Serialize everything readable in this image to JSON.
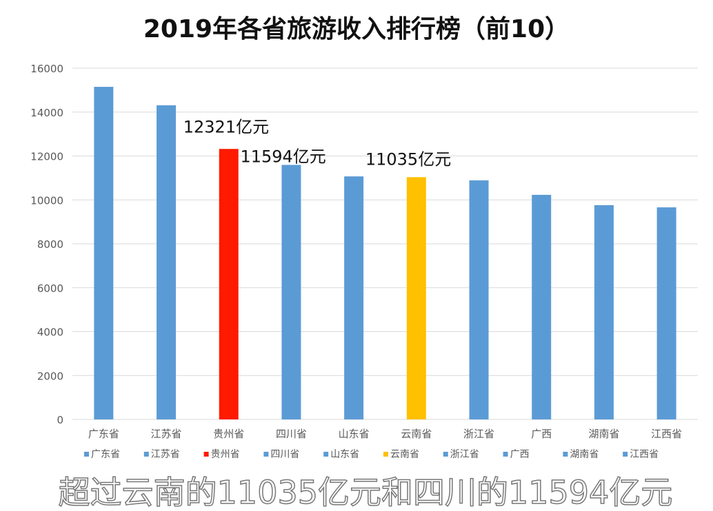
{
  "chart_data": {
    "type": "bar",
    "title": "2019年各省旅游收入排行榜（前10）",
    "categories": [
      "广东省",
      "江苏省",
      "贵州省",
      "四川省",
      "山东省",
      "云南省",
      "浙江省",
      "广西",
      "湖南省",
      "江西省"
    ],
    "values": [
      15150,
      14310,
      12321,
      11594,
      11070,
      11035,
      10890,
      10230,
      9760,
      9660
    ],
    "colors": [
      "#5b9bd5",
      "#5b9bd5",
      "#ff1a00",
      "#5b9bd5",
      "#5b9bd5",
      "#ffc000",
      "#5b9bd5",
      "#5b9bd5",
      "#5b9bd5",
      "#5b9bd5"
    ],
    "ylim": [
      0,
      16000
    ],
    "yticks": [
      0,
      2000,
      4000,
      6000,
      8000,
      10000,
      12000,
      14000,
      16000
    ],
    "grid": true,
    "legend_position": "bottom",
    "annotations": [
      {
        "category": "贵州省",
        "text": "12321亿元"
      },
      {
        "category": "四川省",
        "text": "11594亿元"
      },
      {
        "category": "云南省",
        "text": "11035亿元"
      }
    ],
    "xlabel": "",
    "ylabel": ""
  },
  "caption": "超过云南的11035亿元和四川的11594亿元"
}
